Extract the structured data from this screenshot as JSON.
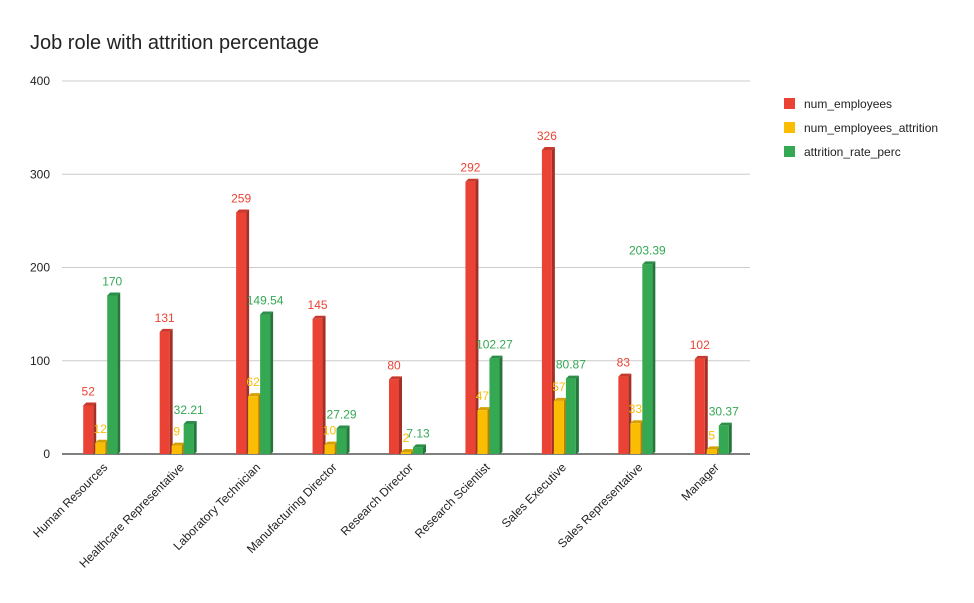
{
  "chart_data": {
    "type": "bar",
    "title": "Job role with attrition percentage",
    "categories": [
      "Human Resources",
      "Healthcare Representative",
      "Laboratory Technician",
      "Manufacturing Director",
      "Research Director",
      "Research Scientist",
      "Sales Executive",
      "Sales Representative",
      "Manager"
    ],
    "series": [
      {
        "name": "num_employees",
        "color": "#ea4335",
        "values": [
          52,
          131,
          259,
          145,
          80,
          292,
          326,
          83,
          102
        ]
      },
      {
        "name": "num_employees_attrition",
        "color": "#fbbc04",
        "values": [
          12,
          9,
          62,
          10,
          2,
          47,
          57,
          33,
          5
        ]
      },
      {
        "name": "attrition_rate_perc",
        "color": "#34a853",
        "values": [
          170,
          32.21,
          149.54,
          27.29,
          7.13,
          102.27,
          80.87,
          203.39,
          30.37
        ]
      }
    ],
    "yticks": [
      0,
      100,
      200,
      300,
      400
    ],
    "ylim": [
      0,
      400
    ],
    "xlabel": "",
    "ylabel": "",
    "grid": true,
    "legend_position": "right",
    "data_labels": true
  }
}
